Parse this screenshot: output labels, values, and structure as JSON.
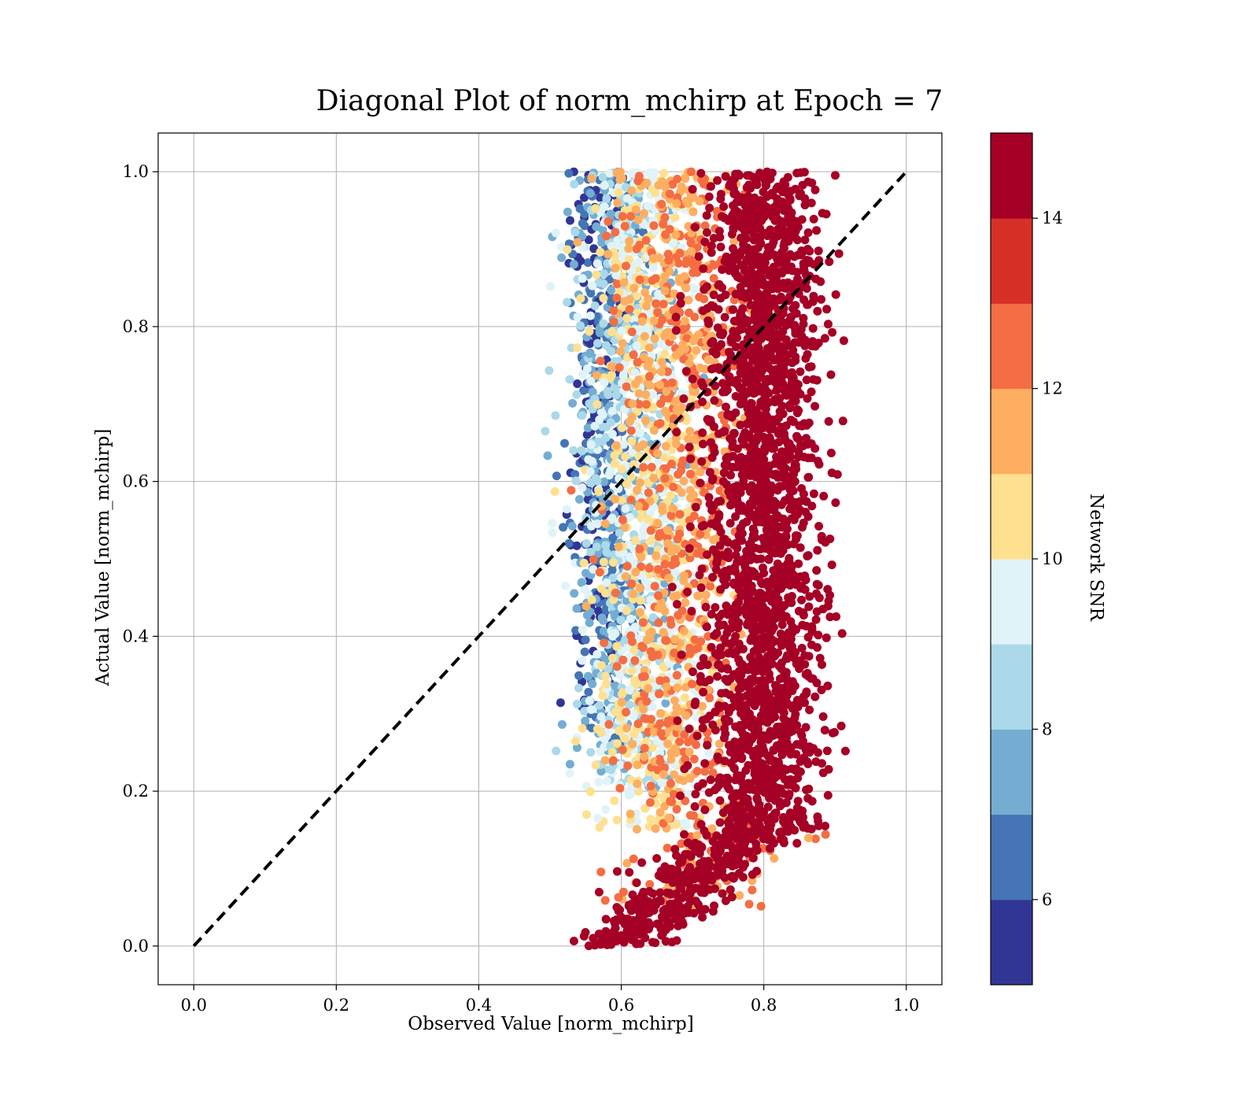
{
  "chart_data": {
    "type": "scatter",
    "title": "Diagonal Plot of norm_mchirp at Epoch = 7",
    "xlabel": "Observed Value [norm_mchirp]",
    "ylabel": "Actual Value [norm_mchirp]",
    "xlim": [
      -0.05,
      1.05
    ],
    "ylim": [
      -0.05,
      1.05
    ],
    "xticks": [
      0.0,
      0.2,
      0.4,
      0.6,
      0.8,
      1.0
    ],
    "yticks": [
      0.0,
      0.2,
      0.4,
      0.6,
      0.8,
      1.0
    ],
    "xtick_labels": [
      "0.0",
      "0.2",
      "0.4",
      "0.6",
      "0.8",
      "1.0"
    ],
    "ytick_labels": [
      "0.0",
      "0.2",
      "0.4",
      "0.6",
      "0.8",
      "1.0"
    ],
    "grid": true,
    "reference_line": {
      "x": [
        0.0,
        1.0
      ],
      "y": [
        0.0,
        1.0
      ],
      "style": "dashed",
      "color": "#000000"
    },
    "colorbar": {
      "label": "Network SNR",
      "range": [
        5,
        15
      ],
      "ticks": [
        6,
        8,
        10,
        12,
        14
      ],
      "tick_labels": [
        "6",
        "8",
        "10",
        "12",
        "14"
      ],
      "colors": [
        "#313695",
        "#4575b4",
        "#74add1",
        "#abd9e9",
        "#e0f3f8",
        "#fee090",
        "#fdae61",
        "#f46d43",
        "#d73027",
        "#a50026"
      ]
    },
    "density_by_snr": [
      {
        "snr": 5.5,
        "x_center": 0.57,
        "y_range": [
          0.3,
          1.0
        ],
        "x_spread": 0.02
      },
      {
        "snr": 7.0,
        "x_center": 0.59,
        "y_range": [
          0.25,
          1.0
        ],
        "x_spread": 0.03
      },
      {
        "snr": 8.5,
        "x_center": 0.61,
        "y_range": [
          0.2,
          1.0
        ],
        "x_spread": 0.04
      },
      {
        "snr": 10.0,
        "x_center": 0.64,
        "y_range": [
          0.15,
          1.0
        ],
        "x_spread": 0.045
      },
      {
        "snr": 12.0,
        "x_center": 0.68,
        "y_range": [
          0.05,
          1.0
        ],
        "x_spread": 0.05
      },
      {
        "snr": 15.0,
        "x_center": 0.8,
        "y_range": [
          0.0,
          1.0
        ],
        "x_spread": 0.04
      }
    ]
  }
}
